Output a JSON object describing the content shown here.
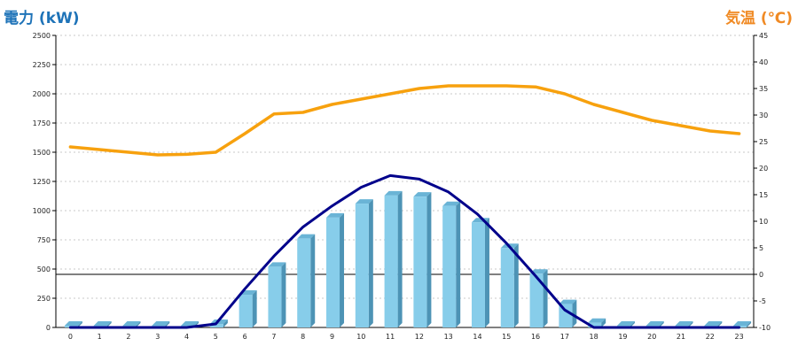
{
  "chart_data": {
    "type": "bar",
    "title_left": "電力 (kW)",
    "title_right": "気温 (℃)",
    "x": [
      "0",
      "1",
      "2",
      "3",
      "4",
      "5",
      "6",
      "7",
      "8",
      "9",
      "10",
      "11",
      "12",
      "13",
      "14",
      "15",
      "16",
      "17",
      "18",
      "19",
      "20",
      "21",
      "22",
      "23"
    ],
    "y_left_ticks": [
      "0",
      "250",
      "500",
      "750",
      "1000",
      "1250",
      "1500",
      "1750",
      "2000",
      "2250",
      "2500"
    ],
    "y_right_ticks": [
      "-10",
      "-5",
      "0",
      "5",
      "10",
      "15",
      "20",
      "25",
      "30",
      "35",
      "40",
      "45"
    ],
    "ylim_left": [
      0,
      2500
    ],
    "ylim_right": [
      -10,
      45
    ],
    "grid": true,
    "series": [
      {
        "axis": "left",
        "type": "bar",
        "color": "#87cdea",
        "values": [
          0,
          0,
          0,
          0,
          0,
          30,
          280,
          520,
          760,
          940,
          1060,
          1130,
          1120,
          1040,
          900,
          680,
          460,
          200,
          40,
          0,
          0,
          0,
          0,
          0
        ]
      },
      {
        "axis": "left",
        "type": "line",
        "color": "#00008b",
        "values": [
          0,
          0,
          0,
          0,
          0,
          30,
          330,
          610,
          860,
          1040,
          1200,
          1300,
          1270,
          1160,
          970,
          720,
          440,
          150,
          0,
          0,
          0,
          0,
          0,
          0
        ]
      },
      {
        "axis": "right",
        "type": "line",
        "color": "#f7a10e",
        "values": [
          24,
          23.5,
          23,
          22.5,
          22.6,
          23,
          26.5,
          30.2,
          30.5,
          32,
          33,
          34,
          35,
          35.5,
          35.5,
          35.5,
          35.3,
          34,
          32,
          30.5,
          29,
          28,
          27,
          26.5
        ]
      }
    ],
    "reference_line": {
      "axis": "right",
      "value": 0,
      "color": "#000000"
    }
  }
}
